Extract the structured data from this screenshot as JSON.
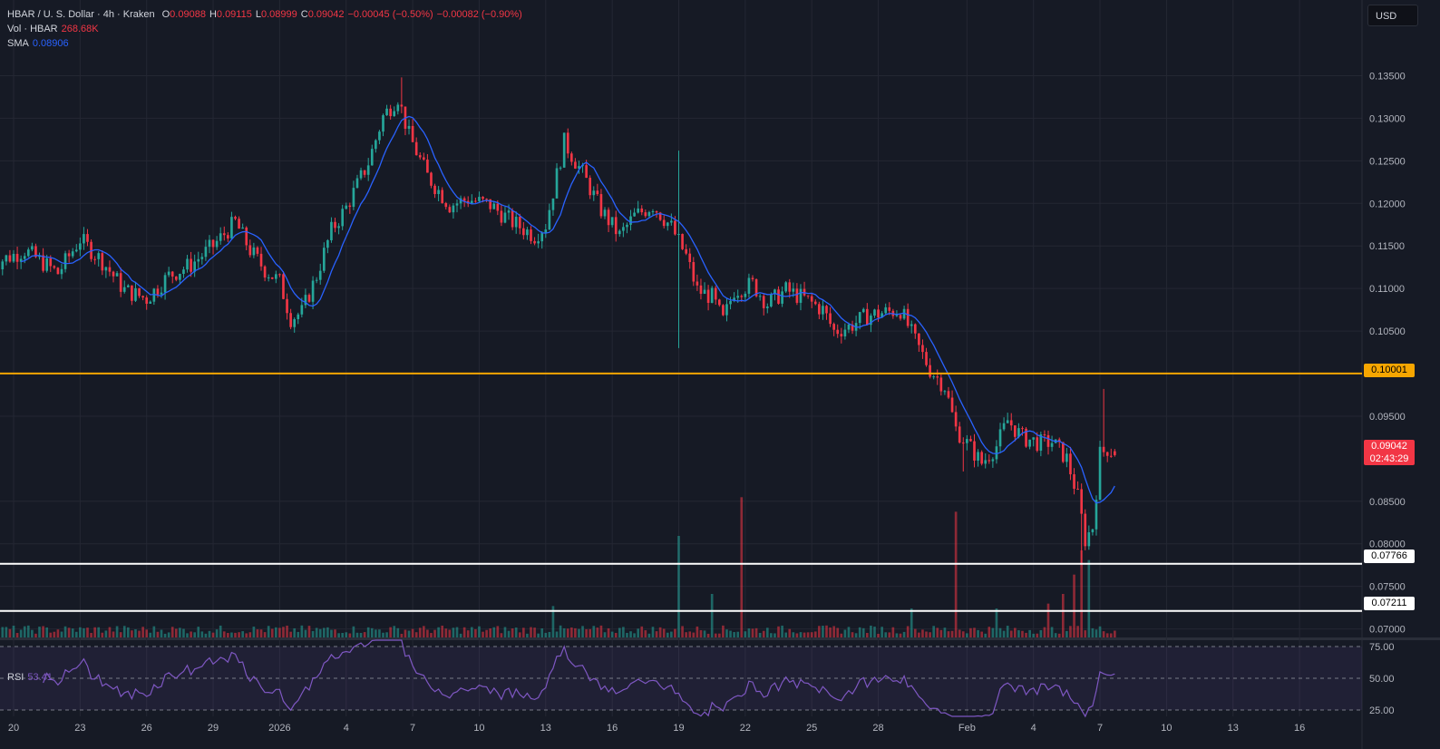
{
  "header": {
    "symbol": "HBAR / U. S. Dollar · 4h · Kraken",
    "ohlc": [
      {
        "key": "O",
        "value": "0.09088"
      },
      {
        "key": "H",
        "value": "0.09115"
      },
      {
        "key": "L",
        "value": "0.08999"
      },
      {
        "key": "C",
        "value": "0.09042"
      }
    ],
    "change": "−0.00045 (−0.50%)",
    "change2": "−0.00082 (−0.90%)"
  },
  "volume_legend": {
    "label": "Vol · HBAR",
    "value": "268.68K"
  },
  "sma_legend": {
    "label": "SMA",
    "value": "0.08906"
  },
  "rsi_legend": {
    "label": "RSI",
    "value": "53.41"
  },
  "currency_button": "USD",
  "price_labels": {
    "last_price": "0.09042",
    "countdown": "02:43:29",
    "line_orange": "0.10001",
    "line_white_1": "0.07766",
    "line_white_2": "0.07211"
  },
  "colors": {
    "background": "#161a25",
    "up": "#26a69a",
    "down": "#f23645",
    "sma": "#2962ff",
    "rsi": "#7e57c2",
    "resistance": "#f7a600",
    "support": "#ffffff"
  },
  "chart_data": {
    "type": "candlestick",
    "title": "HBAR / U. S. Dollar · 4h · Kraken",
    "x_tick_labels": [
      "20",
      "23",
      "26",
      "29",
      "2026",
      "4",
      "7",
      "10",
      "13",
      "16",
      "19",
      "22",
      "25",
      "28",
      "Feb",
      "4",
      "7",
      "10",
      "13",
      "16"
    ],
    "y_tick_labels": [
      "0.13500",
      "0.13000",
      "0.12500",
      "0.12000",
      "0.11500",
      "0.11000",
      "0.10500",
      "0.09500",
      "0.08500",
      "0.08000",
      "0.07500",
      "0.07000"
    ],
    "ylim": [
      0.069,
      0.1375
    ],
    "rsi_tick_labels": [
      "75.00",
      "50.00",
      "25.00"
    ],
    "rsi_lim": [
      20,
      80
    ],
    "horizontal_lines": [
      0.10001,
      0.07766,
      0.07211
    ],
    "close_path": [
      [
        "2025-12-19T00",
        0.1128
      ],
      [
        "2025-12-20T12",
        0.1145
      ],
      [
        "2025-12-22T00",
        0.1118
      ],
      [
        "2025-12-23T00",
        0.1158
      ],
      [
        "2025-12-24T00",
        0.1132
      ],
      [
        "2025-12-25T00",
        0.1098
      ],
      [
        "2025-12-26T00",
        0.1088
      ],
      [
        "2025-12-27T00",
        0.1115
      ],
      [
        "2025-12-28T00",
        0.1128
      ],
      [
        "2025-12-29T00",
        0.115
      ],
      [
        "2025-12-30T00",
        0.1178
      ],
      [
        "2025-12-30T16",
        0.1145
      ],
      [
        "2025-12-31T08",
        0.1122
      ],
      [
        "2026-01-01T00",
        0.1108
      ],
      [
        "2026-01-01T12",
        0.1065
      ],
      [
        "2026-01-02T00",
        0.1072
      ],
      [
        "2026-01-02T16",
        0.1115
      ],
      [
        "2026-01-03T08",
        0.1168
      ],
      [
        "2026-01-04T00",
        0.1195
      ],
      [
        "2026-01-05T00",
        0.1248
      ],
      [
        "2026-01-05T16",
        0.1302
      ],
      [
        "2026-01-06T08",
        0.1325
      ],
      [
        "2026-01-06T20",
        0.128
      ],
      [
        "2026-01-07T16",
        0.1232
      ],
      [
        "2026-01-08T16",
        0.1198
      ],
      [
        "2026-01-09T12",
        0.1205
      ],
      [
        "2026-01-10T12",
        0.1198
      ],
      [
        "2026-01-11T12",
        0.1178
      ],
      [
        "2026-01-12T12",
        0.1162
      ],
      [
        "2026-01-13T00",
        0.1175
      ],
      [
        "2026-01-13T20",
        0.1272
      ],
      [
        "2026-01-14T16",
        0.1235
      ],
      [
        "2026-01-15T12",
        0.1192
      ],
      [
        "2026-01-16T08",
        0.1162
      ],
      [
        "2026-01-17T00",
        0.1185
      ],
      [
        "2026-01-17T20",
        0.1198
      ],
      [
        "2026-01-18T16",
        0.1172
      ],
      [
        "2026-01-19T08",
        0.1138
      ],
      [
        "2026-01-19T20",
        0.1098
      ],
      [
        "2026-01-20T12",
        0.109
      ],
      [
        "2026-01-21T00",
        0.1062
      ],
      [
        "2026-01-21T12",
        0.1098
      ],
      [
        "2026-01-22T08",
        0.1105
      ],
      [
        "2026-01-23T00",
        0.1082
      ],
      [
        "2026-01-23T20",
        0.1098
      ],
      [
        "2026-01-24T16",
        0.1088
      ],
      [
        "2026-01-25T12",
        0.1075
      ],
      [
        "2026-01-26T00",
        0.105
      ],
      [
        "2026-01-26T16",
        0.1055
      ],
      [
        "2026-01-27T12",
        0.1068
      ],
      [
        "2026-01-28T08",
        0.1072
      ],
      [
        "2026-01-29T00",
        0.1075
      ],
      [
        "2026-01-29T16",
        0.1038
      ],
      [
        "2026-01-30T08",
        0.1005
      ],
      [
        "2026-01-31T00",
        0.0985
      ],
      [
        "2026-01-31T12",
        0.0935
      ],
      [
        "2026-02-01T00",
        0.0918
      ],
      [
        "2026-02-01T16",
        0.0895
      ],
      [
        "2026-02-02T08",
        0.0915
      ],
      [
        "2026-02-02T20",
        0.0945
      ],
      [
        "2026-02-03T12",
        0.0925
      ],
      [
        "2026-02-04T08",
        0.0918
      ],
      [
        "2026-02-04T20",
        0.092
      ],
      [
        "2026-02-05T12",
        0.09
      ],
      [
        "2026-02-06T00",
        0.0855
      ],
      [
        "2026-02-06T08",
        0.0805
      ],
      [
        "2026-02-06T16",
        0.082
      ],
      [
        "2026-02-07T00",
        0.0905
      ],
      [
        "2026-02-07T08",
        0.0912
      ],
      [
        "2026-02-07T16",
        0.09042
      ]
    ]
  }
}
